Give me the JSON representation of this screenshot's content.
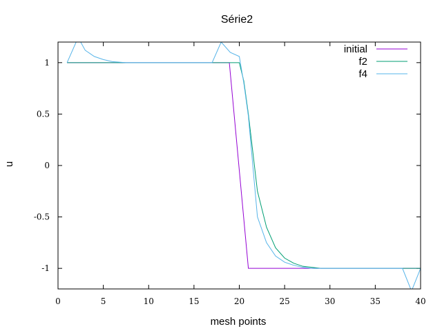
{
  "chart_data": {
    "type": "line",
    "title": "Série2",
    "xlabel": "mesh points",
    "ylabel": "u",
    "xlim": [
      0,
      40
    ],
    "ylim": [
      -1.2,
      1.2
    ],
    "xticks": [
      0,
      5,
      10,
      15,
      20,
      25,
      30,
      35,
      40
    ],
    "yticks": [
      -1,
      -0.5,
      0,
      0.5,
      1
    ],
    "ytick_labels": [
      "-1",
      "-0.5",
      "0",
      "0.5",
      "1"
    ],
    "grid": false,
    "legend_position": "top-right",
    "series": [
      {
        "name": "initial",
        "color": "#9400d3",
        "x": [
          1,
          18.9,
          21,
          40
        ],
        "y": [
          1,
          1,
          -1,
          -1
        ]
      },
      {
        "name": "f2",
        "color": "#009e73",
        "x": [
          1,
          18,
          19,
          20,
          20.5,
          21,
          22,
          23,
          24,
          25,
          26,
          27,
          28,
          29,
          30,
          31,
          40
        ],
        "y": [
          1,
          1,
          1,
          1,
          0.82,
          0.5,
          -0.25,
          -0.6,
          -0.8,
          -0.9,
          -0.95,
          -0.98,
          -0.99,
          -1,
          -1,
          -1,
          -1
        ]
      },
      {
        "name": "f4",
        "color": "#56b4e9",
        "x": [
          1,
          2,
          2.5,
          3,
          4,
          5,
          6,
          7.5,
          17,
          18,
          19,
          20,
          20.5,
          21,
          22,
          23,
          24,
          25,
          26,
          27,
          28,
          29,
          30,
          38,
          39,
          40
        ],
        "y": [
          1,
          1.2,
          1.2,
          1.12,
          1.06,
          1.03,
          1.01,
          1,
          1,
          1.2,
          1.1,
          1.06,
          0.8,
          0.48,
          -0.5,
          -0.75,
          -0.88,
          -0.94,
          -0.97,
          -0.99,
          -1,
          -1,
          -1,
          -1,
          -1.22,
          -1
        ]
      }
    ]
  }
}
